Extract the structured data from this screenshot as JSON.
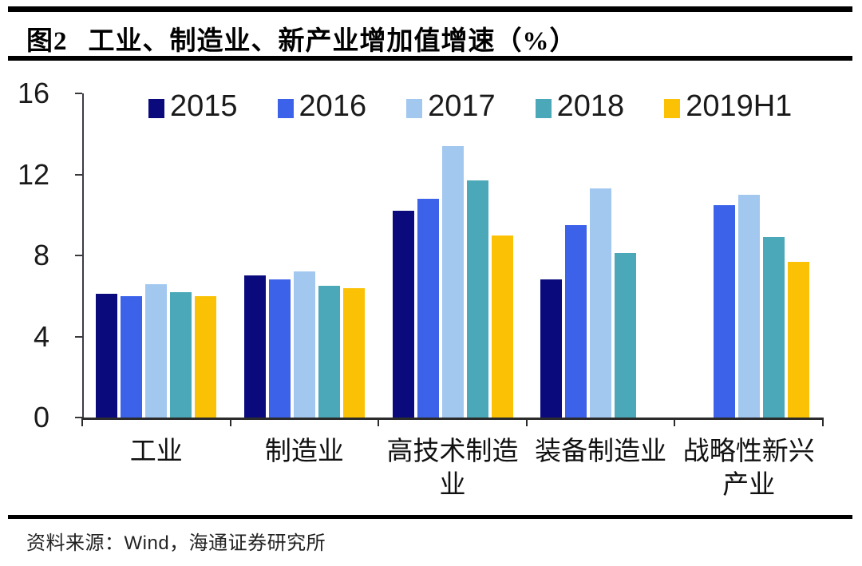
{
  "title": {
    "prefix": "图2",
    "text": "工业、制造业、新产业增加值增速（%）"
  },
  "source": "资料来源：Wind，海通证券研究所",
  "chart_data": {
    "type": "bar",
    "title": "图2 工业、制造业、新产业增加值增速（%）",
    "categories": [
      "工业",
      "制造业",
      "高技术制造业",
      "装备制造业",
      "战略性新兴产业"
    ],
    "series": [
      {
        "name": "2015",
        "color": "#0a0a7d",
        "values": [
          6.1,
          7.0,
          10.2,
          6.8,
          null
        ]
      },
      {
        "name": "2016",
        "color": "#3c62ea",
        "values": [
          6.0,
          6.8,
          10.8,
          9.5,
          10.5
        ]
      },
      {
        "name": "2017",
        "color": "#a2c8f0",
        "values": [
          6.6,
          7.2,
          13.4,
          11.3,
          11.0
        ]
      },
      {
        "name": "2018",
        "color": "#4ba8b8",
        "values": [
          6.2,
          6.5,
          11.7,
          8.1,
          8.9
        ]
      },
      {
        "name": "2019H1",
        "color": "#fac105",
        "values": [
          6.0,
          6.4,
          9.0,
          null,
          7.7
        ]
      }
    ],
    "ylabel": "",
    "xlabel": "",
    "ylim": [
      0,
      16
    ],
    "yticks": [
      "0",
      "4",
      "8",
      "12",
      "16"
    ],
    "grid": false,
    "legend_position": "top"
  }
}
